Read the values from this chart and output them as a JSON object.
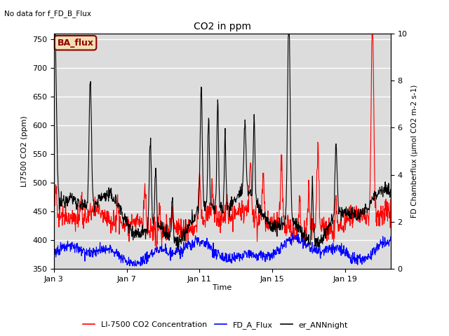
{
  "title": "CO2 in ppm",
  "top_left_text": "No data for f_FD_B_Flux",
  "legend_box_label": "BA_flux",
  "xlabel": "Time",
  "ylabel_left": "LI7500 CO2 (ppm)",
  "ylabel_right": "FD Chamberflux (μmol CO2 m-2 s-1)",
  "ylim_left": [
    350,
    760
  ],
  "ylim_right": [
    0.0,
    10.0
  ],
  "yticks_left": [
    350,
    400,
    450,
    500,
    550,
    600,
    650,
    700,
    750
  ],
  "yticks_right": [
    0.0,
    2.0,
    4.0,
    6.0,
    8.0,
    10.0
  ],
  "xtick_labels": [
    "Jan 3",
    "Jan 7",
    "Jan 11",
    "Jan 15",
    "Jan 19"
  ],
  "xtick_positions": [
    2,
    6,
    10,
    14,
    18
  ],
  "xlim": [
    2,
    20.5
  ],
  "colors": {
    "red": "#FF0000",
    "blue": "#0000FF",
    "black": "#000000",
    "legend_box_bg": "#F5DEB3",
    "legend_box_border": "#8B0000",
    "legend_box_text": "#8B0000",
    "background": "#DCDCDC"
  },
  "legend_entries": [
    {
      "label": "LI-7500 CO2 Concentration",
      "color": "#FF0000",
      "lw": 1.2
    },
    {
      "label": "FD_A_Flux",
      "color": "#0000FF",
      "lw": 1.2
    },
    {
      "label": "er_ANNnight",
      "color": "#000000",
      "lw": 1.2
    }
  ]
}
